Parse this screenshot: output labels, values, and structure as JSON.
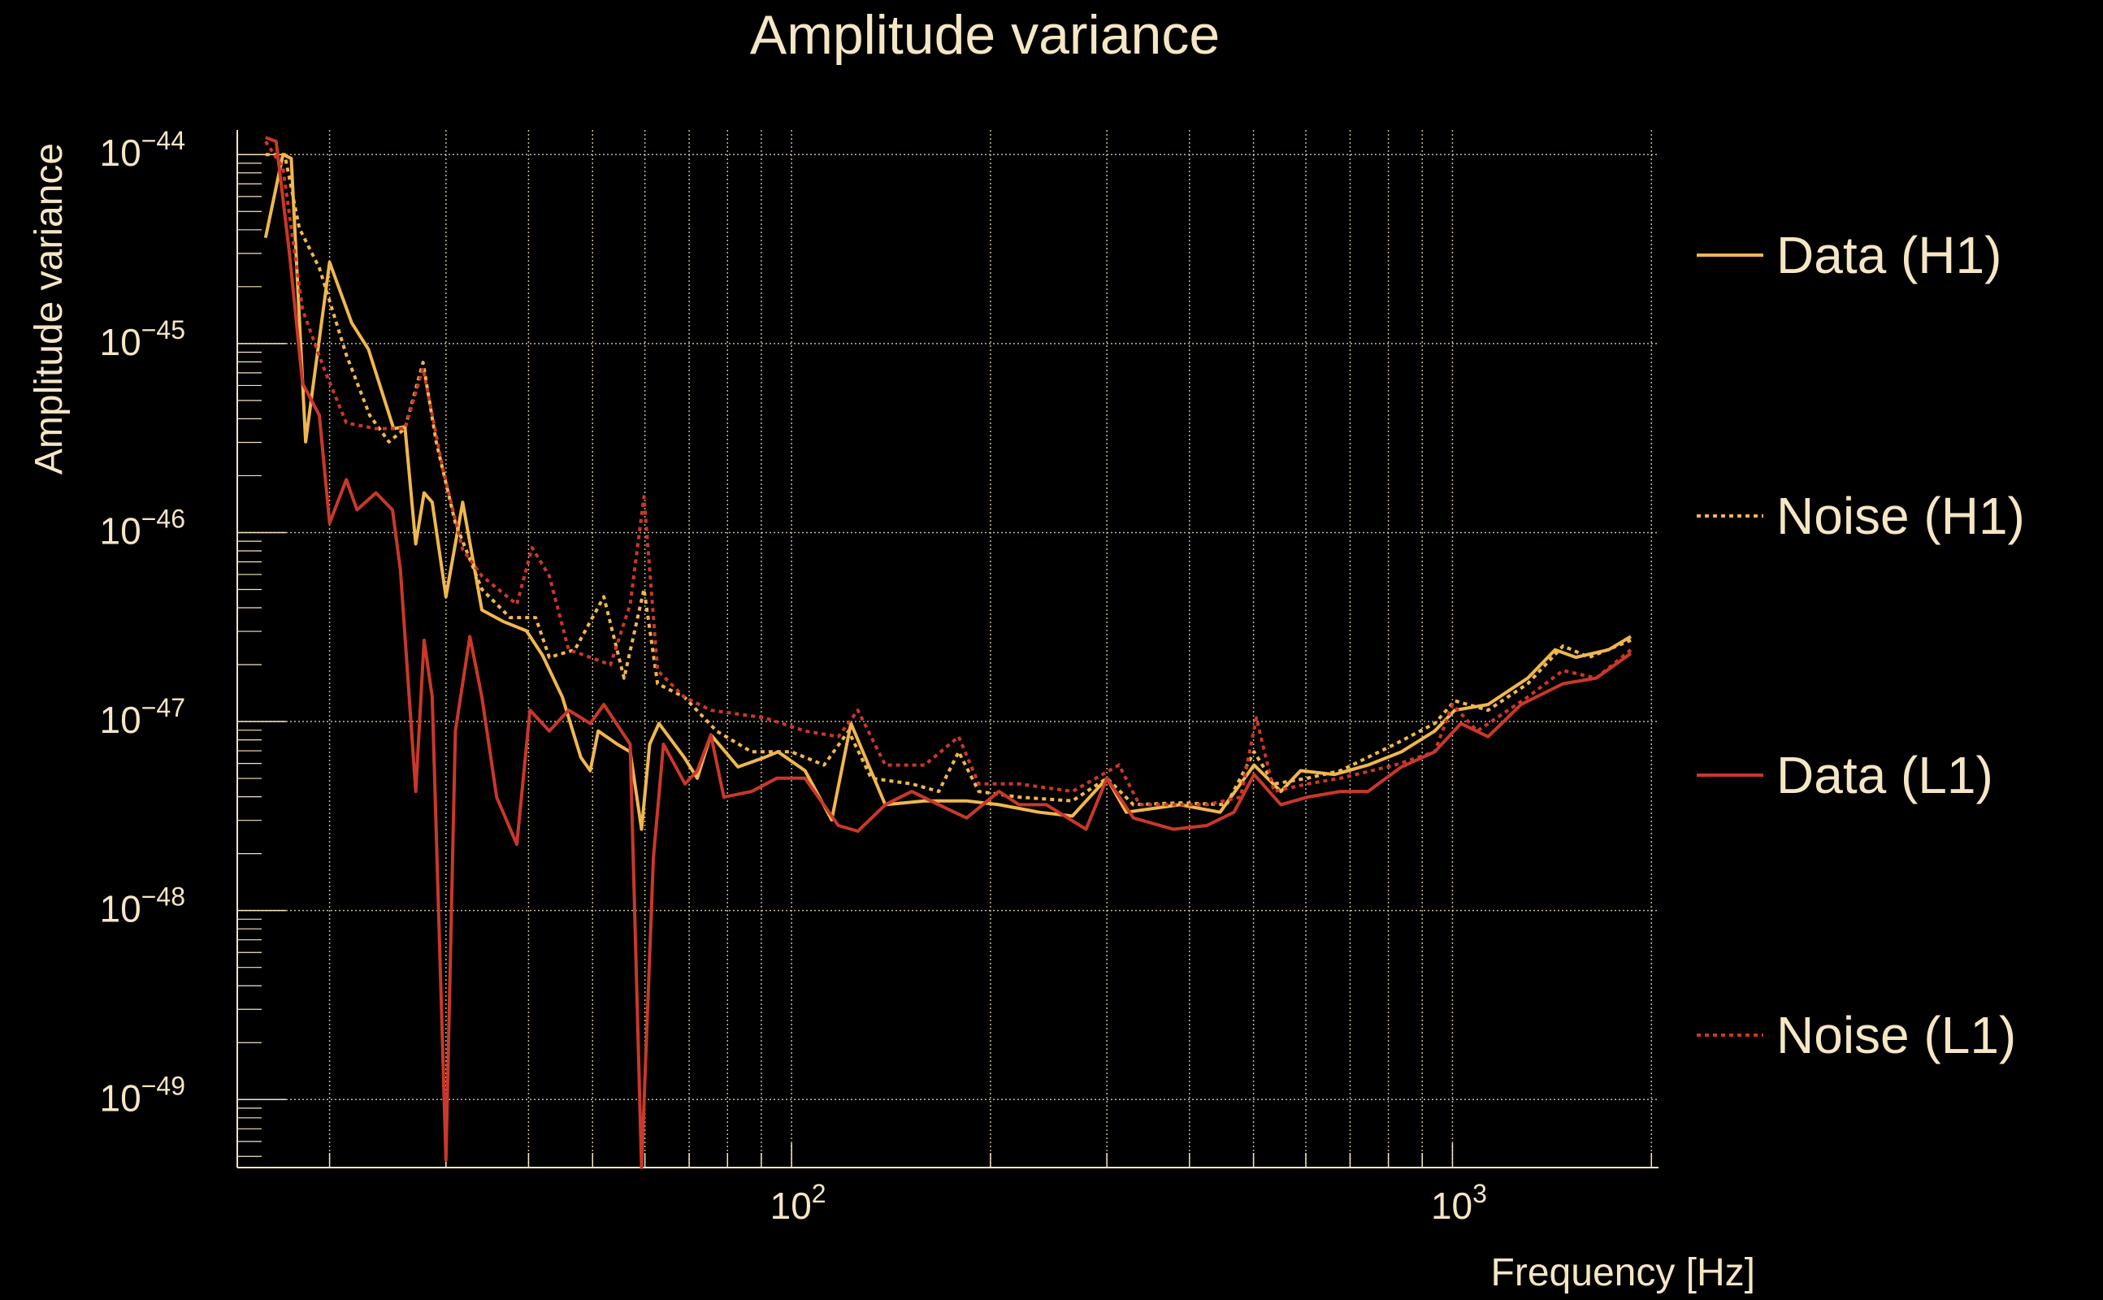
{
  "chart_data": {
    "type": "line",
    "title": "Amplitude variance",
    "xlabel": "Frequency [Hz]",
    "ylabel": "Amplitude variance",
    "xscale": "log",
    "yscale": "log",
    "xlim": [
      14.5,
      2050
    ],
    "ylim_log10": [
      -49.36,
      -43.87
    ],
    "grid": true,
    "legend_position": "right",
    "x_tick_labels": [
      {
        "base": "10",
        "exp": "2",
        "value": 100
      },
      {
        "base": "10",
        "exp": "3",
        "value": 1000
      }
    ],
    "y_tick_labels": [
      {
        "base": "10",
        "exp": "−44",
        "log10": -44
      },
      {
        "base": "10",
        "exp": "−45",
        "log10": -45
      },
      {
        "base": "10",
        "exp": "−46",
        "log10": -46
      },
      {
        "base": "10",
        "exp": "−47",
        "log10": -47
      },
      {
        "base": "10",
        "exp": "−48",
        "log10": -48
      },
      {
        "base": "10",
        "exp": "−49",
        "log10": -49
      }
    ],
    "series": [
      {
        "name": "Data (H1)",
        "color": "#f0b74f",
        "dash": "solid",
        "x": [
          16,
          17,
          17.5,
          18.4,
          20,
          21.6,
          22.9,
          25,
          26,
          27,
          27.8,
          28.6,
          30,
          31.8,
          34,
          36.6,
          39.7,
          42,
          45,
          48,
          49.6,
          51,
          54.5,
          57,
          59.3,
          61,
          63,
          68.8,
          72,
          75.5,
          83,
          91,
          95.4,
          104.8,
          115,
          123,
          138.6,
          159,
          184,
          206,
          237,
          266,
          300,
          321,
          387,
          445,
          501,
          550,
          589,
          663,
          745,
          837,
          940,
          1008,
          1132,
          1300,
          1430,
          1537,
          1723,
          1862
        ],
        "log10_y": [
          -44.44,
          -44.0,
          -44.02,
          -45.52,
          -44.57,
          -44.89,
          -45.03,
          -45.45,
          -45.44,
          -46.06,
          -45.79,
          -45.84,
          -46.34,
          -45.84,
          -46.41,
          -46.47,
          -46.52,
          -46.65,
          -46.87,
          -47.19,
          -47.26,
          -47.05,
          -47.12,
          -47.16,
          -47.57,
          -47.12,
          -47.01,
          -47.19,
          -47.3,
          -47.07,
          -47.24,
          -47.19,
          -47.16,
          -47.26,
          -47.52,
          -47.01,
          -47.44,
          -47.42,
          -47.42,
          -47.44,
          -47.48,
          -47.5,
          -47.3,
          -47.48,
          -47.44,
          -47.48,
          -47.23,
          -47.37,
          -47.26,
          -47.28,
          -47.23,
          -47.16,
          -47.05,
          -46.94,
          -46.91,
          -46.77,
          -46.62,
          -46.66,
          -46.62,
          -46.55
        ]
      },
      {
        "name": "Noise (H1)",
        "color": "#f0b74f",
        "dash": "dotted",
        "x": [
          16,
          17.1,
          18,
          19.3,
          21.2,
          23,
          24.6,
          26,
          27.7,
          29,
          31,
          34,
          37.5,
          41,
          43,
          47,
          52,
          55.8,
          59.8,
          62.7,
          68.8,
          77,
          87,
          100,
          112,
          122,
          132,
          152,
          167,
          179,
          192,
          221,
          266,
          300,
          329,
          387,
          455,
          501,
          537,
          603,
          677,
          818,
          940,
          1008,
          1132,
          1300,
          1470,
          1610,
          1862
        ],
        "log10_y": [
          -44.0,
          -44.0,
          -44.39,
          -44.6,
          -45.06,
          -45.38,
          -45.52,
          -45.45,
          -45.1,
          -45.52,
          -45.95,
          -46.3,
          -46.45,
          -46.45,
          -46.66,
          -46.62,
          -46.34,
          -46.77,
          -46.3,
          -46.8,
          -46.87,
          -47.05,
          -47.16,
          -47.16,
          -47.23,
          -47.05,
          -47.3,
          -47.33,
          -47.37,
          -47.16,
          -47.37,
          -47.4,
          -47.42,
          -47.3,
          -47.44,
          -47.43,
          -47.44,
          -47.16,
          -47.33,
          -47.3,
          -47.26,
          -47.12,
          -47.01,
          -46.89,
          -46.94,
          -46.8,
          -46.6,
          -46.66,
          -46.57
        ]
      },
      {
        "name": "Data (L1)",
        "color": "#c9382a",
        "dash": "solid",
        "x": [
          16,
          16.6,
          17.4,
          18.2,
          19.3,
          20,
          21.2,
          22,
          23.5,
          24.9,
          25.6,
          27,
          27.8,
          28.6,
          30,
          31,
          32.6,
          34,
          35.8,
          38.4,
          40.2,
          43,
          46,
          49.6,
          52,
          57,
          59.3,
          61.8,
          64,
          69,
          72,
          75.5,
          79,
          87,
          95,
          104.8,
          117.7,
          126,
          138.6,
          152,
          167,
          184,
          206,
          221,
          243,
          279,
          300,
          329,
          378,
          425,
          467,
          501,
          550,
          603,
          677,
          745,
          837,
          940,
          1030,
          1132,
          1270,
          1470,
          1650,
          1862
        ],
        "log10_y": [
          -43.91,
          -43.93,
          -44.53,
          -45.21,
          -45.38,
          -45.95,
          -45.72,
          -45.88,
          -45.79,
          -45.88,
          -46.2,
          -47.37,
          -46.57,
          -46.87,
          -49.32,
          -47.05,
          -46.55,
          -46.87,
          -47.4,
          -47.65,
          -46.94,
          -47.05,
          -46.94,
          -47.01,
          -46.91,
          -47.12,
          -49.36,
          -47.72,
          -47.12,
          -47.33,
          -47.26,
          -47.07,
          -47.4,
          -47.37,
          -47.3,
          -47.3,
          -47.55,
          -47.58,
          -47.44,
          -47.37,
          -47.44,
          -47.51,
          -47.37,
          -47.44,
          -47.44,
          -47.57,
          -47.3,
          -47.51,
          -47.57,
          -47.55,
          -47.48,
          -47.28,
          -47.44,
          -47.4,
          -47.37,
          -47.37,
          -47.24,
          -47.16,
          -47.01,
          -47.08,
          -46.91,
          -46.8,
          -46.77,
          -46.64
        ]
      },
      {
        "name": "Noise (L1)",
        "color": "#c9382a",
        "dash": "dotted",
        "x": [
          16,
          17,
          18.2,
          19.6,
          21.2,
          23.5,
          26,
          27.7,
          29.7,
          31.8,
          34,
          38.4,
          40.5,
          43,
          46,
          49.6,
          53.2,
          57,
          59.8,
          62.7,
          68.8,
          75.5,
          91,
          104.8,
          117.7,
          126,
          138.6,
          159,
          179,
          192,
          221,
          266,
          313,
          336,
          425,
          478,
          505,
          537,
          603,
          677,
          818,
          940,
          1000,
          1090,
          1300,
          1470,
          1650,
          1862
        ],
        "log10_y": [
          -43.93,
          -44.07,
          -44.82,
          -45.13,
          -45.42,
          -45.45,
          -45.45,
          -45.13,
          -45.67,
          -46.09,
          -46.23,
          -46.38,
          -46.08,
          -46.23,
          -46.62,
          -46.66,
          -46.7,
          -46.38,
          -45.81,
          -46.73,
          -46.87,
          -46.94,
          -46.98,
          -47.05,
          -47.08,
          -46.94,
          -47.23,
          -47.23,
          -47.08,
          -47.33,
          -47.33,
          -47.37,
          -47.23,
          -47.44,
          -47.44,
          -47.4,
          -46.98,
          -47.37,
          -47.33,
          -47.3,
          -47.23,
          -47.16,
          -46.91,
          -47.05,
          -46.87,
          -46.73,
          -46.77,
          -46.62
        ]
      }
    ]
  }
}
